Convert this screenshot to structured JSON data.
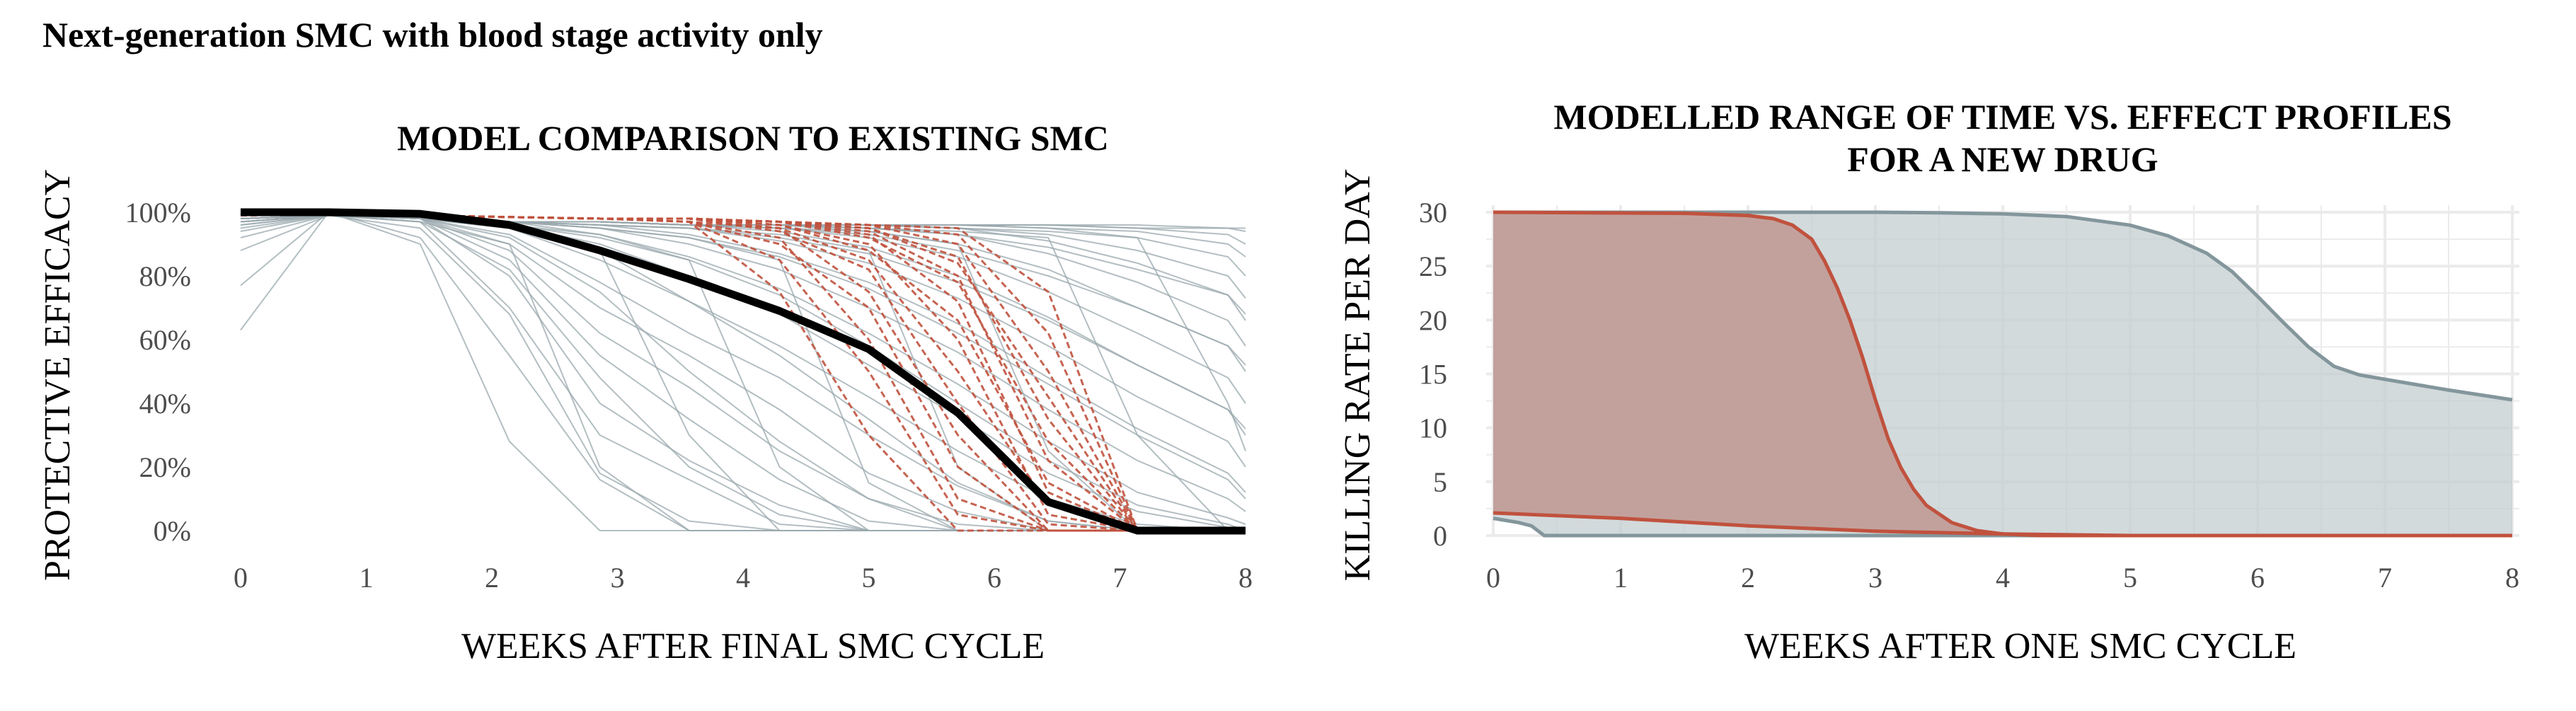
{
  "figure_title": "Next-generation SMC with blood stage activity only",
  "colors": {
    "grey_line": "#9aa8ad",
    "grey_dark": "#83969c",
    "grey_fill": "#c3cdd0",
    "red_line": "#c0523e",
    "red_fill": "#c09792",
    "black": "#000000",
    "grid": "#ebebeb",
    "tick_text": "#4d4d4d"
  },
  "chart_data": [
    {
      "type": "line",
      "title": "MODEL  COMPARISON  TO  EXISTING  SMC",
      "xlabel": "WEEKS  AFTER  FINAL  SMC  CYCLE",
      "ylabel": "PROTECTIVE  EFFICACY",
      "xlim": [
        0,
        8
      ],
      "ylim": [
        0,
        100
      ],
      "x_ticks": [
        0,
        1,
        2,
        3,
        4,
        5,
        6,
        7,
        8
      ],
      "y_ticks": [
        0,
        20,
        40,
        60,
        80,
        100
      ],
      "y_tick_labels": [
        "0%",
        "20%",
        "40%",
        "60%",
        "80%",
        "100%"
      ],
      "grid": false,
      "bold_line": {
        "x": [
          0,
          0.7,
          1.43,
          2.14,
          2.86,
          3.57,
          4.29,
          5.0,
          5.71,
          6.43,
          7.14,
          7.86,
          8.0
        ],
        "y": [
          100,
          100,
          99.5,
          96,
          88,
          79,
          69,
          57,
          37,
          9,
          0,
          0,
          0
        ]
      },
      "grey_series_x": [
        0,
        0.7,
        1.43,
        2.14,
        2.86,
        3.57,
        4.29,
        5.0,
        5.71,
        6.43,
        7.14,
        7.86,
        8.0
      ],
      "grey_series": [
        [
          63,
          100,
          90,
          28,
          0,
          0,
          0,
          0,
          0,
          0,
          0,
          0,
          0
        ],
        [
          77,
          100,
          92,
          55,
          16,
          0,
          0,
          0,
          0,
          0,
          0,
          0,
          0
        ],
        [
          88,
          99,
          95,
          68,
          18,
          3,
          0,
          0,
          0,
          0,
          0,
          0,
          0
        ],
        [
          92,
          99,
          97,
          70,
          30,
          16,
          2,
          0,
          0,
          0,
          0,
          0,
          0
        ],
        [
          94,
          99,
          98,
          80,
          40,
          22,
          8,
          0,
          0,
          0,
          0,
          0,
          0
        ],
        [
          95,
          99,
          98,
          85,
          55,
          35,
          16,
          3,
          0,
          0,
          0,
          0,
          0
        ],
        [
          96,
          99,
          98,
          88,
          62,
          45,
          25,
          10,
          2,
          0,
          0,
          0,
          0
        ],
        [
          97,
          99,
          98,
          90,
          70,
          55,
          38,
          18,
          6,
          0,
          0,
          0,
          0
        ],
        [
          97,
          99,
          98,
          93,
          78,
          62,
          48,
          30,
          14,
          3,
          0,
          0,
          0
        ],
        [
          98,
          99,
          98,
          95,
          85,
          72,
          58,
          42,
          25,
          10,
          2,
          0,
          0
        ],
        [
          98,
          99,
          98,
          96,
          90,
          80,
          68,
          52,
          36,
          18,
          6,
          1,
          0
        ],
        [
          98,
          99,
          98,
          97,
          93,
          86,
          76,
          62,
          46,
          28,
          12,
          4,
          2
        ],
        [
          98,
          99,
          98,
          97,
          95,
          90,
          82,
          70,
          56,
          38,
          22,
          10,
          6
        ],
        [
          98,
          99,
          98,
          97,
          96,
          93,
          87,
          78,
          65,
          48,
          32,
          18,
          12
        ],
        [
          98,
          99,
          98,
          97,
          96,
          95,
          91,
          84,
          73,
          58,
          42,
          28,
          20
        ],
        [
          98,
          99,
          98,
          97,
          97,
          96,
          94,
          89,
          80,
          67,
          52,
          38,
          30
        ],
        [
          98,
          99,
          98,
          97,
          97,
          96,
          95,
          92,
          86,
          75,
          62,
          48,
          40
        ],
        [
          98,
          99,
          98,
          97,
          97,
          96,
          96,
          94,
          90,
          82,
          70,
          58,
          50
        ],
        [
          98,
          99,
          98,
          97,
          97,
          96,
          96,
          95,
          93,
          87,
          78,
          66,
          58
        ],
        [
          98,
          99,
          98,
          97,
          97,
          96,
          96,
          96,
          95,
          91,
          84,
          74,
          66
        ],
        [
          98,
          99,
          98,
          97,
          97,
          96,
          96,
          96,
          95,
          93,
          88,
          80,
          73
        ],
        [
          98,
          99,
          98,
          97,
          97,
          96,
          96,
          96,
          96,
          95,
          92,
          86,
          80
        ],
        [
          98,
          99,
          98,
          97,
          97,
          96,
          96,
          96,
          96,
          95,
          94,
          90,
          86
        ],
        [
          98,
          99,
          98,
          97,
          97,
          96,
          96,
          96,
          96,
          96,
          95,
          93,
          90
        ],
        [
          98,
          99,
          98,
          97,
          97,
          96,
          96,
          96,
          96,
          96,
          95,
          95,
          94
        ],
        [
          98,
          99,
          98,
          97,
          97,
          96,
          96,
          96,
          96,
          96,
          96,
          95,
          95
        ],
        [
          97,
          99,
          97,
          90,
          20,
          0,
          0,
          0,
          0,
          0,
          0,
          0,
          0
        ],
        [
          97,
          99,
          98,
          95,
          88,
          30,
          0,
          0,
          0,
          0,
          0,
          0,
          0
        ],
        [
          98,
          99,
          98,
          96,
          92,
          85,
          20,
          0,
          0,
          0,
          0,
          0,
          0
        ],
        [
          98,
          99,
          98,
          97,
          95,
          92,
          85,
          15,
          0,
          0,
          0,
          0,
          0
        ],
        [
          98,
          99,
          98,
          97,
          96,
          95,
          93,
          88,
          20,
          0,
          0,
          0,
          0
        ],
        [
          98,
          99,
          98,
          97,
          97,
          96,
          95,
          94,
          90,
          25,
          0,
          0,
          0
        ],
        [
          98,
          99,
          98,
          97,
          97,
          96,
          96,
          95,
          94,
          92,
          30,
          0,
          0
        ],
        [
          98,
          99,
          98,
          97,
          97,
          96,
          96,
          96,
          95,
          94,
          92,
          40,
          25
        ],
        [
          96,
          99,
          97,
          82,
          48,
          20,
          5,
          0,
          0,
          0,
          0,
          0,
          0
        ],
        [
          97,
          99,
          98,
          92,
          75,
          50,
          28,
          10,
          0,
          0,
          0,
          0,
          0
        ],
        [
          98,
          99,
          98,
          95,
          88,
          72,
          55,
          35,
          15,
          3,
          0,
          0,
          0
        ],
        [
          98,
          99,
          98,
          96,
          93,
          85,
          74,
          58,
          40,
          22,
          8,
          2,
          0
        ],
        [
          98,
          99,
          98,
          97,
          95,
          92,
          86,
          76,
          62,
          46,
          30,
          16,
          10
        ],
        [
          98,
          99,
          98,
          97,
          96,
          95,
          92,
          87,
          78,
          66,
          52,
          38,
          32
        ],
        [
          98,
          99,
          98,
          97,
          97,
          96,
          95,
          93,
          88,
          80,
          70,
          58,
          52
        ],
        [
          98,
          99,
          98,
          97,
          97,
          96,
          96,
          95,
          93,
          89,
          82,
          74,
          68
        ]
      ],
      "red_series_x": [
        0,
        0.7,
        1.43,
        2.14,
        2.86,
        3.57,
        4.29,
        5.0,
        5.71,
        6.43,
        7.14,
        7.86,
        8.0
      ],
      "red_series": [
        [
          99,
          99.5,
          99,
          98.5,
          98,
          97,
          75,
          30,
          0,
          0,
          0,
          0,
          0
        ],
        [
          99,
          99.5,
          99,
          98.5,
          98,
          97,
          85,
          50,
          5,
          0,
          0,
          0,
          0
        ],
        [
          99,
          99.5,
          99,
          98.5,
          98,
          97,
          90,
          70,
          20,
          0,
          0,
          0,
          0
        ],
        [
          99,
          99.5,
          99,
          98.5,
          98,
          98,
          94,
          82,
          40,
          2,
          0,
          0,
          0
        ],
        [
          99,
          99.5,
          99,
          98.5,
          98,
          98,
          96,
          90,
          60,
          5,
          0,
          0,
          0
        ],
        [
          99,
          99.5,
          99,
          98.5,
          98,
          98,
          97,
          93,
          72,
          12,
          0,
          0,
          0
        ],
        [
          99,
          99.5,
          99,
          98.5,
          98,
          98,
          97,
          94,
          80,
          22,
          0,
          0,
          0
        ],
        [
          99,
          99.5,
          99,
          98.5,
          98,
          98,
          97,
          95,
          86,
          35,
          0,
          0,
          0
        ],
        [
          99,
          99.5,
          99,
          98.5,
          98,
          98,
          97,
          96,
          90,
          50,
          0,
          0,
          0
        ],
        [
          99,
          99.5,
          99,
          98.5,
          98,
          98,
          97,
          96,
          93,
          62,
          0,
          0,
          0
        ],
        [
          99,
          99.5,
          99,
          98.5,
          98,
          98,
          97,
          96,
          95,
          75,
          0,
          0,
          0
        ],
        [
          99,
          99.5,
          99,
          98.5,
          98,
          97,
          92,
          60,
          10,
          0,
          0,
          0,
          0
        ],
        [
          99,
          99.5,
          99,
          98.5,
          98,
          97,
          95,
          75,
          30,
          0,
          0,
          0,
          0
        ],
        [
          99,
          99.5,
          99,
          98.5,
          98,
          98,
          95,
          85,
          50,
          8,
          0,
          0,
          0
        ],
        [
          99,
          99.5,
          99,
          98.5,
          98,
          98,
          96,
          88,
          66,
          15,
          0,
          0,
          0
        ],
        [
          99,
          99.5,
          99,
          98.5,
          98,
          98,
          97,
          92,
          78,
          28,
          0,
          0,
          0
        ],
        [
          99,
          99.5,
          99,
          98.5,
          98,
          98,
          97,
          95,
          84,
          42,
          0,
          0,
          0
        ]
      ]
    },
    {
      "type": "area",
      "title": [
        "MODELLED  RANGE  OF  TIME  VS.  EFFECT  PROFILES",
        "FOR  A  NEW  DRUG"
      ],
      "xlabel": "WEEKS  AFTER  ONE  SMC  CYCLE",
      "ylabel": "KILLING  RATE  PER  DAY",
      "xlim": [
        0,
        8
      ],
      "ylim": [
        0,
        30
      ],
      "x_ticks": [
        0,
        1,
        2,
        3,
        4,
        5,
        6,
        7,
        8
      ],
      "y_ticks": [
        0,
        5,
        10,
        15,
        20,
        25,
        30
      ],
      "grid": true,
      "grey_upper": {
        "x": [
          0,
          1,
          2,
          3,
          3.5,
          4,
          4.5,
          5,
          5.3,
          5.6,
          5.8,
          6,
          6.2,
          6.4,
          6.6,
          6.8,
          7,
          7.5,
          8
        ],
        "y": [
          30,
          30,
          30,
          30,
          29.95,
          29.85,
          29.6,
          28.8,
          27.8,
          26.2,
          24.5,
          22.2,
          19.8,
          17.5,
          15.7,
          14.9,
          14.5,
          13.5,
          12.6
        ]
      },
      "grey_lower": {
        "x": [
          0,
          0.2,
          0.3,
          0.4,
          8
        ],
        "y": [
          1.6,
          1.2,
          0.9,
          0,
          0
        ]
      },
      "red_upper": {
        "x": [
          0,
          1.5,
          2,
          2.2,
          2.35,
          2.5,
          2.6,
          2.7,
          2.8,
          2.9,
          3.0,
          3.1,
          3.2,
          3.3,
          3.4,
          3.6,
          3.8,
          4.0,
          4.3,
          8
        ],
        "y": [
          30,
          29.9,
          29.7,
          29.4,
          28.8,
          27.5,
          25.5,
          23,
          20,
          16.5,
          12.6,
          9,
          6.3,
          4.3,
          2.8,
          1.2,
          0.45,
          0.15,
          0,
          0
        ]
      },
      "red_lower": {
        "x": [
          0,
          1,
          2,
          3,
          4,
          5,
          6,
          7,
          8
        ],
        "y": [
          2.1,
          1.6,
          0.9,
          0.4,
          0.15,
          0,
          0,
          0,
          0
        ]
      }
    }
  ]
}
